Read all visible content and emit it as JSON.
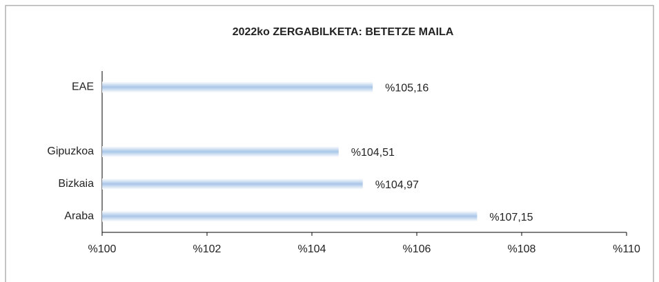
{
  "chart_data": {
    "type": "hbar",
    "title": "2022ko ZERGABILKETA: BETETZE MAILA",
    "categories": [
      "EAE",
      null,
      "Gipuzkoa",
      "Bizkaia",
      "Araba"
    ],
    "values": [
      105.16,
      null,
      104.51,
      104.97,
      107.15
    ],
    "value_labels": [
      "%105,16",
      null,
      "%104,51",
      "%104,97",
      "%107,15"
    ],
    "color": "#a9c6e8",
    "xlim": [
      100,
      110
    ],
    "xticks": [
      {
        "value": 100,
        "label": "%100"
      },
      {
        "value": 102,
        "label": "%102"
      },
      {
        "value": 104,
        "label": "%104"
      },
      {
        "value": 106,
        "label": "%106"
      },
      {
        "value": 108,
        "label": "%108"
      },
      {
        "value": 110,
        "label": "%110"
      }
    ],
    "grid": false
  }
}
